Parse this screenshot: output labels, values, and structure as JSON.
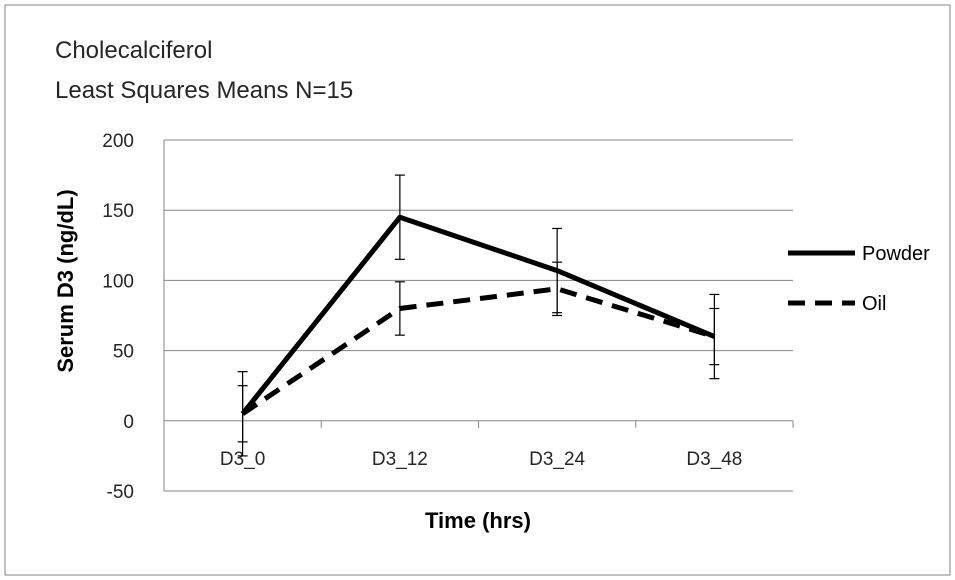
{
  "chart_data": {
    "type": "line",
    "title_lines": [
      "Cholecalciferol",
      "Least Squares Means N=15"
    ],
    "xlabel": "Time (hrs)",
    "ylabel": "Serum D3 (ng/dL)",
    "categories": [
      "D3_0",
      "D3_12",
      "D3_24",
      "D3_48"
    ],
    "ylim": [
      -50,
      200
    ],
    "yticks": [
      -50,
      0,
      50,
      100,
      150,
      200
    ],
    "grid": true,
    "legend_position": "right",
    "series": [
      {
        "name": "Powder",
        "values": [
          5,
          145,
          107,
          60
        ],
        "error": [
          30,
          30,
          30,
          30
        ],
        "line_style": "solid",
        "color": "#000000"
      },
      {
        "name": "Oil",
        "values": [
          5,
          80,
          94,
          60
        ],
        "error": [
          20,
          19,
          19,
          20
        ],
        "line_style": "dashed",
        "color": "#000000"
      }
    ]
  }
}
